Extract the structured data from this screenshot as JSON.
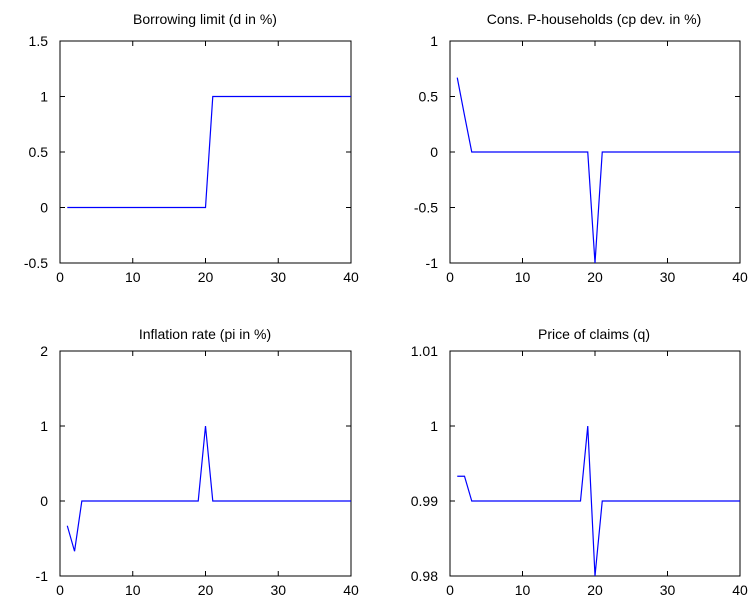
{
  "figure": {
    "background": "#ffffff",
    "line_color": "#0000ff",
    "axis_color": "#000000"
  },
  "chart_data": [
    {
      "type": "line",
      "title": "Borrowing limit (d in %)",
      "xlim": [
        0,
        40
      ],
      "ylim": [
        -0.5,
        1.5
      ],
      "xticks": [
        0,
        10,
        20,
        30,
        40
      ],
      "xtick_labels": [
        "0",
        "10",
        "20",
        "30",
        "40"
      ],
      "yticks": [
        -0.5,
        0,
        0.5,
        1,
        1.5
      ],
      "ytick_labels": [
        "-0.5",
        "0",
        "0.5",
        "1",
        "1.5"
      ],
      "grid": false,
      "series": [
        {
          "x": [
            1,
            20,
            21,
            40
          ],
          "y": [
            0,
            0,
            1,
            1
          ],
          "color": "#0000ff"
        }
      ]
    },
    {
      "type": "line",
      "title": "Cons. P-households (cp dev. in %)",
      "xlim": [
        0,
        40
      ],
      "ylim": [
        -1,
        1
      ],
      "xticks": [
        0,
        10,
        20,
        30,
        40
      ],
      "xtick_labels": [
        "0",
        "10",
        "20",
        "30",
        "40"
      ],
      "yticks": [
        -1,
        -0.5,
        0,
        0.5,
        1
      ],
      "ytick_labels": [
        "-1",
        "-0.5",
        "0",
        "0.5",
        "1"
      ],
      "grid": false,
      "series": [
        {
          "x": [
            1,
            2,
            3,
            19,
            20,
            21,
            40
          ],
          "y": [
            0.67,
            0.33,
            0,
            0,
            -1,
            0,
            0
          ],
          "color": "#0000ff"
        }
      ]
    },
    {
      "type": "line",
      "title": "Inflation rate (pi in %)",
      "xlim": [
        0,
        40
      ],
      "ylim": [
        -1,
        2
      ],
      "xticks": [
        0,
        10,
        20,
        30,
        40
      ],
      "xtick_labels": [
        "0",
        "10",
        "20",
        "30",
        "40"
      ],
      "yticks": [
        -1,
        0,
        1,
        2
      ],
      "ytick_labels": [
        "-1",
        "0",
        "1",
        "2"
      ],
      "grid": false,
      "series": [
        {
          "x": [
            1,
            2,
            3,
            19,
            20,
            21,
            40
          ],
          "y": [
            -0.33,
            -0.67,
            0,
            0,
            1,
            0,
            0
          ],
          "color": "#0000ff"
        }
      ]
    },
    {
      "type": "line",
      "title": "Price of claims (q)",
      "xlim": [
        0,
        40
      ],
      "ylim": [
        0.98,
        1.01
      ],
      "xticks": [
        0,
        10,
        20,
        30,
        40
      ],
      "xtick_labels": [
        "0",
        "10",
        "20",
        "30",
        "40"
      ],
      "yticks": [
        0.98,
        0.99,
        1,
        1.01
      ],
      "ytick_labels": [
        "0.98",
        "0.99",
        "1",
        "1.01"
      ],
      "grid": false,
      "series": [
        {
          "x": [
            1,
            2,
            3,
            18,
            19,
            20,
            21,
            40
          ],
          "y": [
            0.9933,
            0.9933,
            0.99,
            0.99,
            1.0,
            0.98,
            0.99,
            0.99
          ],
          "color": "#0000ff"
        }
      ]
    }
  ]
}
